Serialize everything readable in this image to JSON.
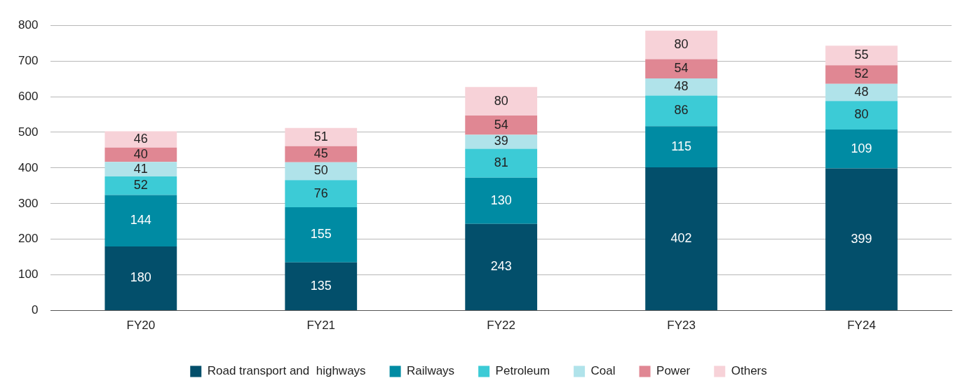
{
  "chart_data": {
    "type": "bar",
    "stacked": true,
    "categories": [
      "FY20",
      "FY21",
      "FY22",
      "FY23",
      "FY24"
    ],
    "series": [
      {
        "name": "Road transport and  highways",
        "color": "#034f6b",
        "values": [
          180,
          135,
          243,
          402,
          399
        ]
      },
      {
        "name": "Railways",
        "color": "#008ba3",
        "values": [
          144,
          155,
          130,
          115,
          109
        ]
      },
      {
        "name": "Petroleum",
        "color": "#3ccbd6",
        "values": [
          52,
          76,
          81,
          86,
          80
        ]
      },
      {
        "name": "Coal",
        "color": "#b0e3ea",
        "values": [
          41,
          50,
          39,
          48,
          48
        ]
      },
      {
        "name": "Power",
        "color": "#e08793",
        "values": [
          40,
          45,
          54,
          54,
          52
        ]
      },
      {
        "name": "Others",
        "color": "#f7d2d8",
        "values": [
          46,
          51,
          80,
          80,
          55
        ]
      }
    ],
    "ylim": [
      0,
      800
    ],
    "yticks": [
      0,
      100,
      200,
      300,
      400,
      500,
      600,
      700,
      800
    ],
    "grid": "y",
    "legend": "bottom",
    "data_labels": true
  }
}
